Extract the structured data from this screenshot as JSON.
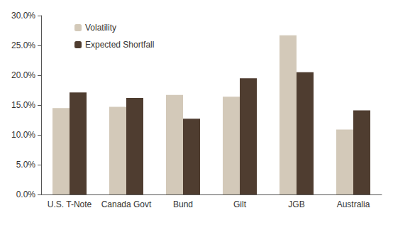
{
  "chart_data": {
    "type": "bar",
    "categories": [
      "U.S. T-Note",
      "Canada Govt",
      "Bund",
      "Gilt",
      "JGB",
      "Australia"
    ],
    "series": [
      {
        "name": "Volatility",
        "color": "#d3c9b9",
        "values": [
          14.5,
          14.7,
          16.7,
          16.4,
          26.7,
          10.9
        ]
      },
      {
        "name": "Expected Shortfall",
        "color": "#4f3d30",
        "values": [
          17.1,
          16.2,
          12.7,
          19.5,
          20.5,
          14.1
        ]
      }
    ],
    "ylim": [
      0,
      30
    ],
    "yticks": [
      {
        "value": 0,
        "label": "0.0%"
      },
      {
        "value": 5,
        "label": "5.0%"
      },
      {
        "value": 10,
        "label": "10.0%"
      },
      {
        "value": 15,
        "label": "15.0%"
      },
      {
        "value": 20,
        "label": "20.0%"
      },
      {
        "value": 25,
        "label": "25.0%"
      },
      {
        "value": 30,
        "label": "30.0%"
      }
    ],
    "grid": false,
    "legend": "upper left"
  }
}
